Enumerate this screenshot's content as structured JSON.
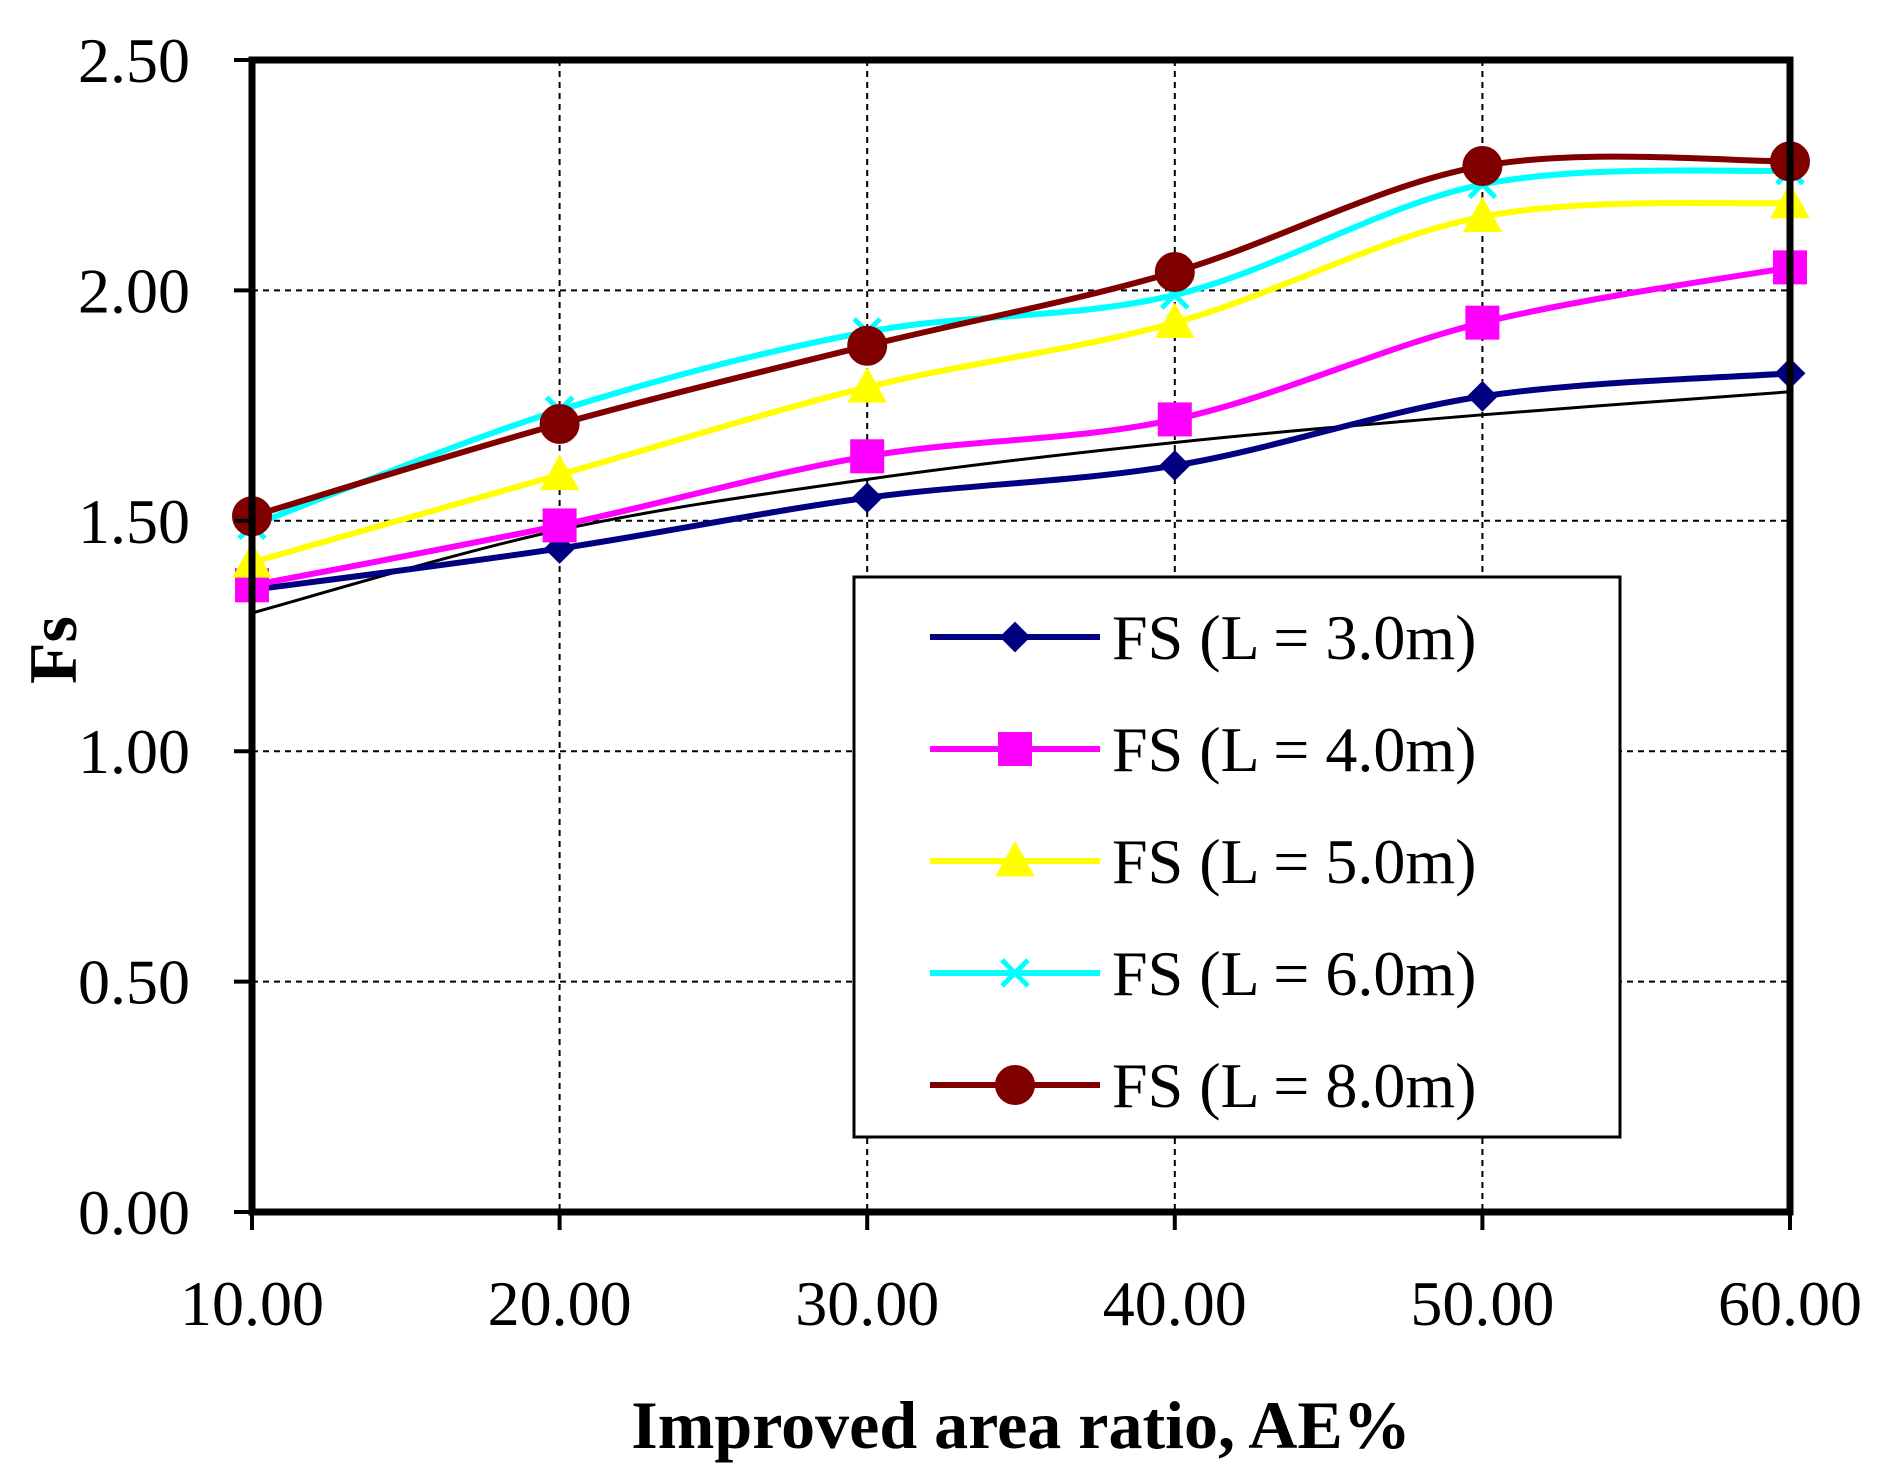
{
  "chart_data": {
    "type": "line",
    "title": "",
    "xlabel": "Improved area ratio, AE%",
    "ylabel": "Fs",
    "x": [
      10,
      20,
      30,
      40,
      50,
      60
    ],
    "x_tick_labels": [
      "10.00",
      "20.00",
      "30.00",
      "40.00",
      "50.00",
      "60.00"
    ],
    "y_tick_labels": [
      "0.00",
      "0.50",
      "1.00",
      "1.50",
      "2.00",
      "2.50"
    ],
    "y_ticks": [
      0,
      0.5,
      1.0,
      1.5,
      2.0,
      2.5
    ],
    "xlim": [
      10,
      60
    ],
    "ylim": [
      0,
      2.5
    ],
    "grid": true,
    "legend_position": "center-right",
    "series": [
      {
        "name": "FS (L = 3.0m)",
        "color": "#000080",
        "marker": "diamond",
        "values": [
          1.35,
          1.44,
          1.55,
          1.62,
          1.77,
          1.82
        ]
      },
      {
        "name": "FS (L = 4.0m)",
        "color": "#ff00ff",
        "marker": "square",
        "values": [
          1.36,
          1.49,
          1.64,
          1.72,
          1.93,
          2.05
        ]
      },
      {
        "name": "FS (L = 5.0m)",
        "color": "#ffff00",
        "marker": "triangle",
        "values": [
          1.41,
          1.6,
          1.79,
          1.93,
          2.16,
          2.19
        ]
      },
      {
        "name": "FS (L = 6.0m)",
        "color": "#00ffff",
        "marker": "x",
        "values": [
          1.49,
          1.74,
          1.91,
          1.99,
          2.23,
          2.26
        ]
      },
      {
        "name": "FS (L = 8.0m)",
        "color": "#800000",
        "marker": "circle",
        "values": [
          1.51,
          1.71,
          1.88,
          2.04,
          2.27,
          2.28
        ]
      }
    ],
    "trendline": {
      "color": "#000000",
      "x": [
        10,
        20,
        30,
        40,
        50,
        60
      ],
      "values": [
        1.3,
        1.48,
        1.59,
        1.67,
        1.73,
        1.78
      ]
    }
  }
}
